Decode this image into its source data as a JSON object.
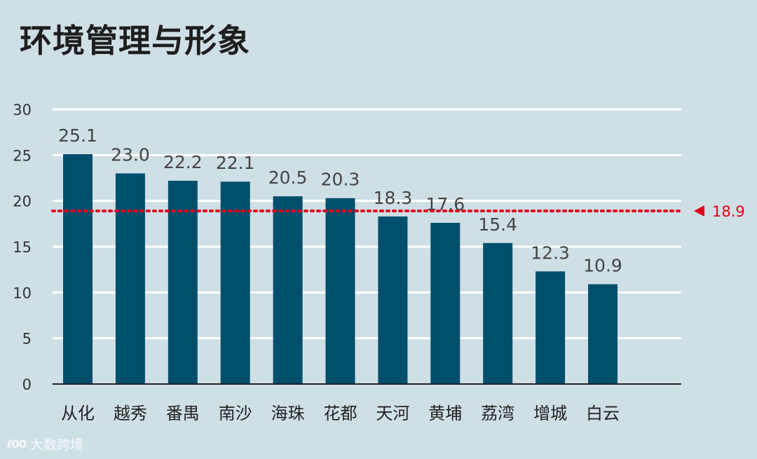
{
  "title": "环境管理与形象",
  "chart_data": {
    "type": "bar",
    "categories": [
      "从化",
      "越秀",
      "番禺",
      "南沙",
      "海珠",
      "花都",
      "天河",
      "黄埔",
      "荔湾",
      "增城",
      "白云"
    ],
    "values": [
      25.1,
      23.0,
      22.2,
      22.1,
      20.5,
      20.3,
      18.3,
      17.6,
      15.4,
      12.3,
      10.9
    ],
    "value_labels": [
      "25.1",
      "23.0",
      "22.2",
      "22.1",
      "20.5",
      "20.3",
      "18.3",
      "17.6",
      "15.4",
      "12.3",
      "10.9"
    ],
    "y_ticks": [
      0,
      5,
      10,
      15,
      20,
      25,
      30
    ],
    "ylim": [
      0,
      30
    ],
    "grid": true,
    "reference_line": {
      "value": 18.9,
      "label": "18.9",
      "color": "#e0001b",
      "style": "dotted"
    },
    "bar_color": "#004f6d"
  },
  "watermark": {
    "logo": "(00",
    "text": "大数跨境"
  }
}
